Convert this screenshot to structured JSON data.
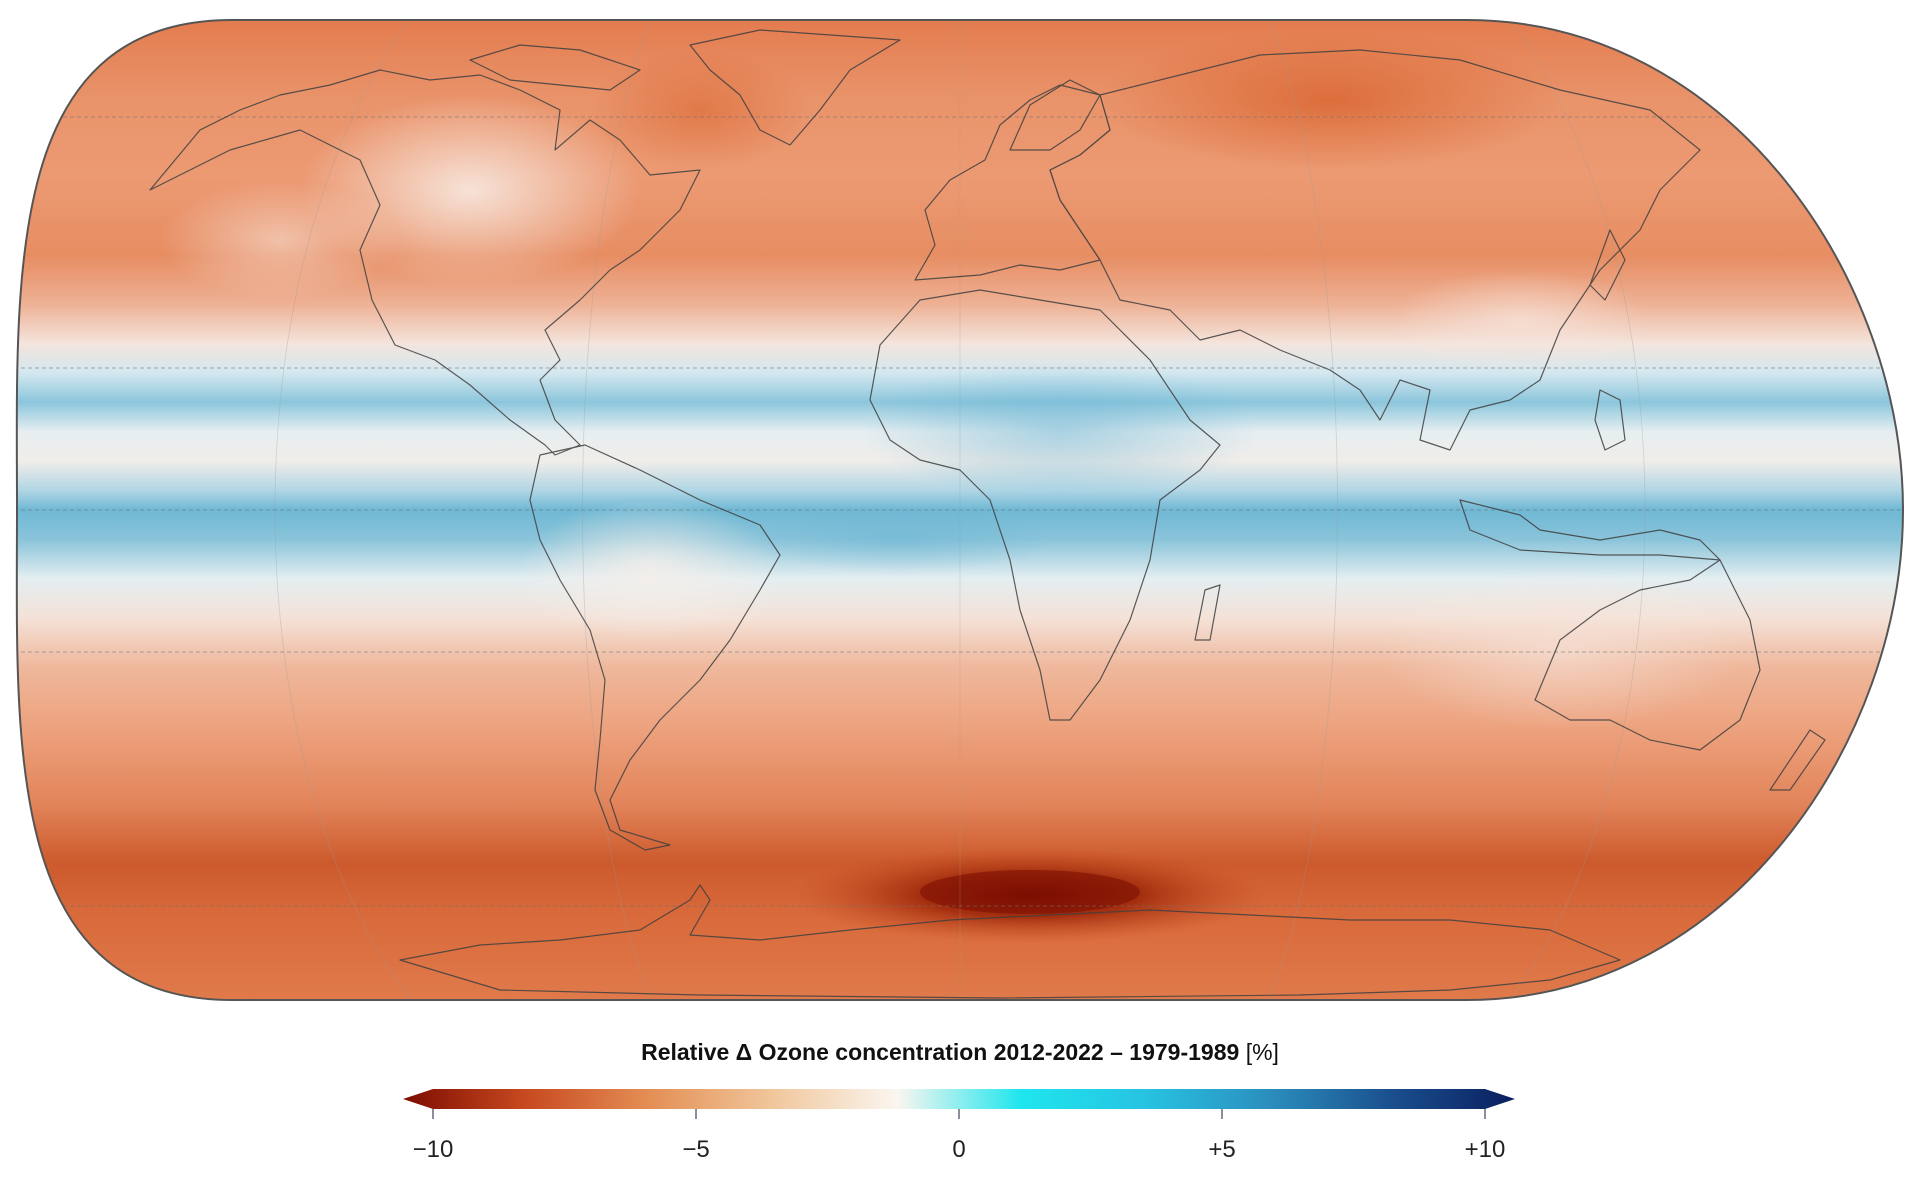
{
  "map": {
    "projection": "Equal Earth",
    "colors": {
      "strong_loss": "#8a1203",
      "loss": "#e07a4c",
      "mild_loss": "#eea584",
      "neutral": "#f6ece6",
      "gain": "#7fc2da",
      "strong_gain": "#52a9cd",
      "outline": "#555555",
      "coastline": "#444444"
    }
  },
  "legend": {
    "title": "Relative Δ Ozone concentration 2012-2022 – 1979-1989",
    "unit": "[%]",
    "colormap": [
      "#7d0c00",
      "#c84a20",
      "#e48f55",
      "#f0c79c",
      "#fbf6f0",
      "#1fe6ee",
      "#27c3e2",
      "#2b8fbe",
      "#1a4f8e",
      "#0a1f5f"
    ],
    "ticks": [
      {
        "value": -10,
        "label": "−10"
      },
      {
        "value": -5,
        "label": "−5"
      },
      {
        "value": 0,
        "label": "0"
      },
      {
        "value": 5,
        "label": "+5"
      },
      {
        "value": 10,
        "label": "+10"
      }
    ],
    "range": [
      -10,
      10
    ]
  }
}
